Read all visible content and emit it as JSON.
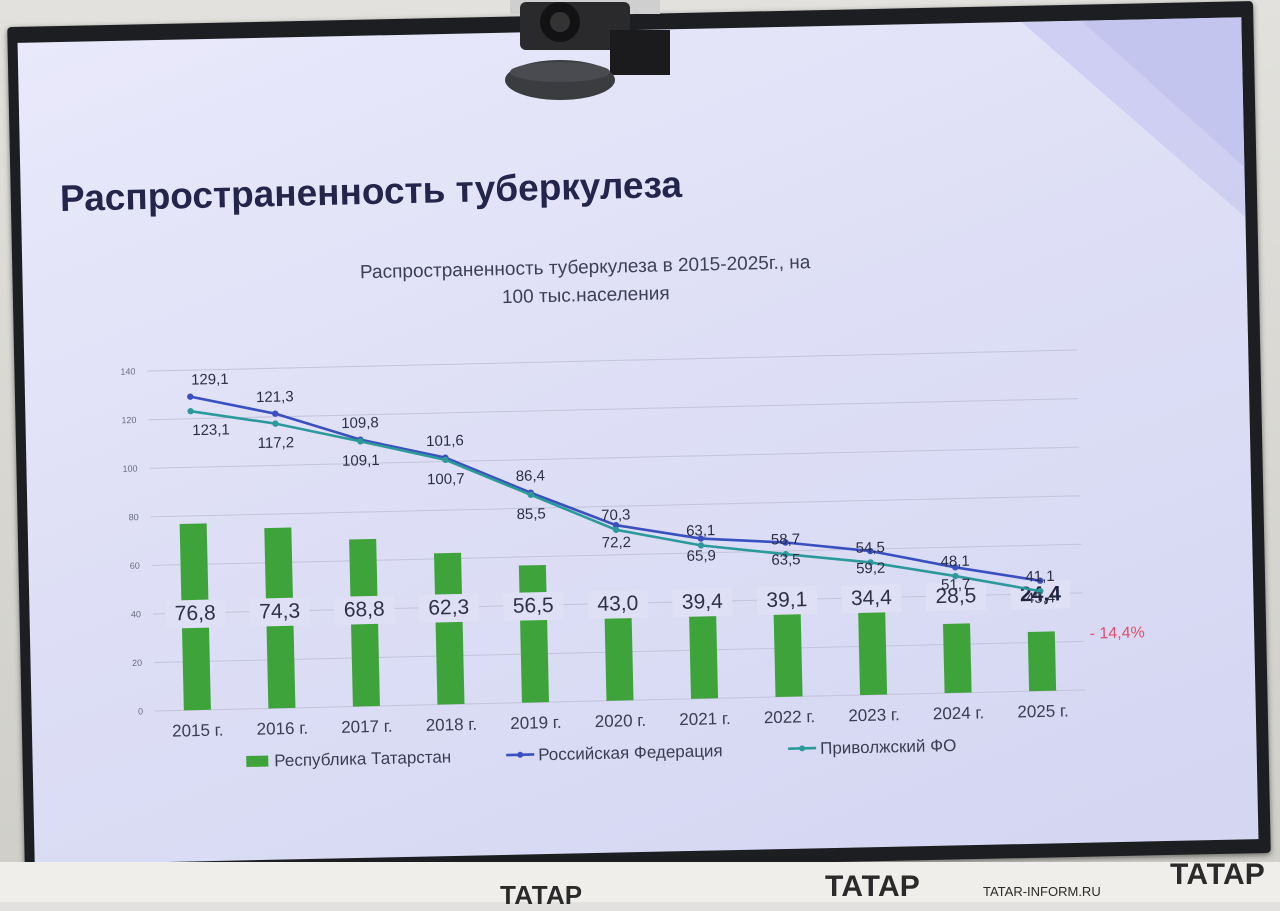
{
  "slide": {
    "title": "Распространенность туберкулеза"
  },
  "chart_data": {
    "type": "bar",
    "title": "Распространенность туберкулеза в 2015-2025г., на 100 тыс.населения",
    "title_lines": [
      "Распространенность туберкулеза в 2015-2025г., на",
      "100 тыс.населения"
    ],
    "categories": [
      "2015 г.",
      "2016 г.",
      "2017 г.",
      "2018 г.",
      "2019 г.",
      "2020 г.",
      "2021 г.",
      "2022 г.",
      "2023 г.",
      "2024 г.",
      "2025 г."
    ],
    "ylim": [
      0,
      140
    ],
    "y_ticks": [
      0,
      20,
      40,
      60,
      80,
      100,
      120,
      140
    ],
    "grid": true,
    "legend_position": "bottom",
    "series": [
      {
        "name": "Республика Татарстан",
        "type": "bar",
        "color": "#3fa33b",
        "values": [
          76.8,
          74.3,
          68.8,
          62.3,
          56.5,
          43.0,
          39.4,
          39.1,
          34.4,
          28.5,
          24.4
        ],
        "labels": [
          "76,8",
          "74,3",
          "68,8",
          "62,3",
          "56,5",
          "43,0",
          "39,4",
          "39,1",
          "34,4",
          "28,5",
          "24,4"
        ]
      },
      {
        "name": "Российская Федерация",
        "type": "line",
        "color": "#3a4fc0",
        "values": [
          129.1,
          121.3,
          109.8,
          101.6,
          86.4,
          72.2,
          65.9,
          63.5,
          59.2,
          51.7,
          45.4
        ],
        "labels": [
          "129,1",
          "121,3",
          "109,8",
          "101,6",
          "86,4",
          "72,2",
          "65,9",
          "63,5",
          "59,2",
          "51,7",
          "45,4"
        ]
      },
      {
        "name": "Приволжский ФО",
        "type": "line",
        "color": "#2c9a9a",
        "values": [
          123.1,
          117.2,
          109.1,
          100.7,
          85.5,
          70.3,
          63.1,
          58.7,
          54.5,
          48.1,
          41.1
        ],
        "labels": [
          "123,1",
          "117,2",
          "109,1",
          "100,7",
          "85,5",
          "70,3",
          "63,1",
          "58,7",
          "54,5",
          "48,1",
          "41,1"
        ]
      }
    ],
    "annotation": "- 14,4%",
    "annotation_color": "#e0506e"
  },
  "brands": {
    "left": "ТАТАР",
    "center": "ТАТАР",
    "url": "TATAR-INFORM.RU",
    "right": "ТАТАР"
  }
}
